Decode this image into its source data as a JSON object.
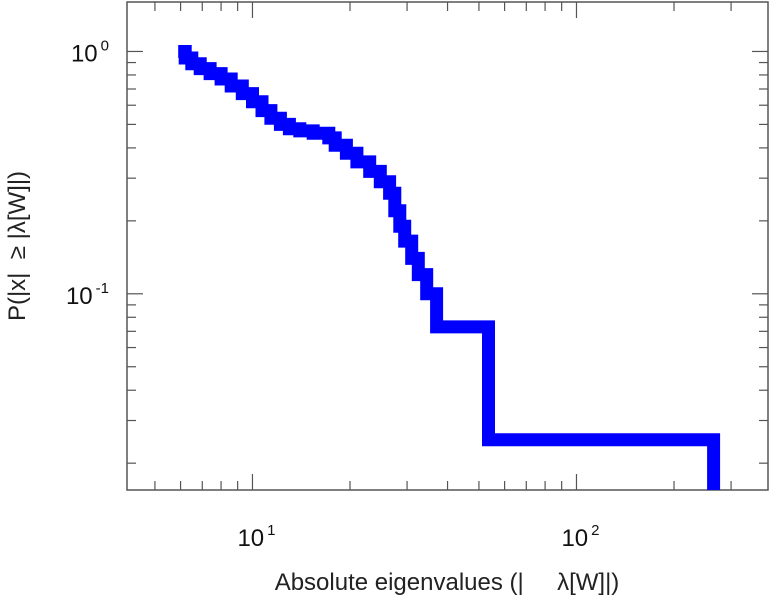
{
  "chart_data": {
    "type": "line",
    "title": "",
    "xlabel": "Absolute eigenvalues (|     λ[W]|)",
    "ylabel": "P(|x|  ≥ |λ[W]|)",
    "x_scale": "log",
    "y_scale": "log",
    "xlim": [
      4.1,
      390
    ],
    "ylim": [
      0.0155,
      1.6
    ],
    "grid": false,
    "legend": "none",
    "x_ticks": [
      {
        "value": 10,
        "base": "10",
        "exponent": "1"
      },
      {
        "value": 100,
        "base": "10",
        "exponent": "2"
      }
    ],
    "y_ticks": [
      {
        "value": 1,
        "base": "10",
        "exponent": "0"
      },
      {
        "value": 0.1,
        "base": "10",
        "exponent": "-1"
      }
    ],
    "series": [
      {
        "color": "#0000ff",
        "step": true,
        "x": [
          5.9,
          6.2,
          6.5,
          6.9,
          7.4,
          8.0,
          8.6,
          9.3,
          10.0,
          10.7,
          11.4,
          12.2,
          13.0,
          14.0,
          15.4,
          17.2,
          18.0,
          19.5,
          21.0,
          23.0,
          24.8,
          26.5,
          27.5,
          28.5,
          29.5,
          31.0,
          32.5,
          34.5,
          37.0,
          44.0,
          53.5,
          53.5,
          80.0,
          150.0,
          265.0,
          265.0
        ],
        "y": [
          1.0,
          0.94,
          0.89,
          0.85,
          0.81,
          0.77,
          0.72,
          0.67,
          0.62,
          0.57,
          0.53,
          0.5,
          0.48,
          0.47,
          0.46,
          0.44,
          0.41,
          0.38,
          0.35,
          0.32,
          0.29,
          0.26,
          0.22,
          0.19,
          0.165,
          0.14,
          0.12,
          0.1,
          0.073,
          0.073,
          0.073,
          0.025,
          0.025,
          0.025,
          0.025,
          0.0155
        ]
      }
    ]
  }
}
